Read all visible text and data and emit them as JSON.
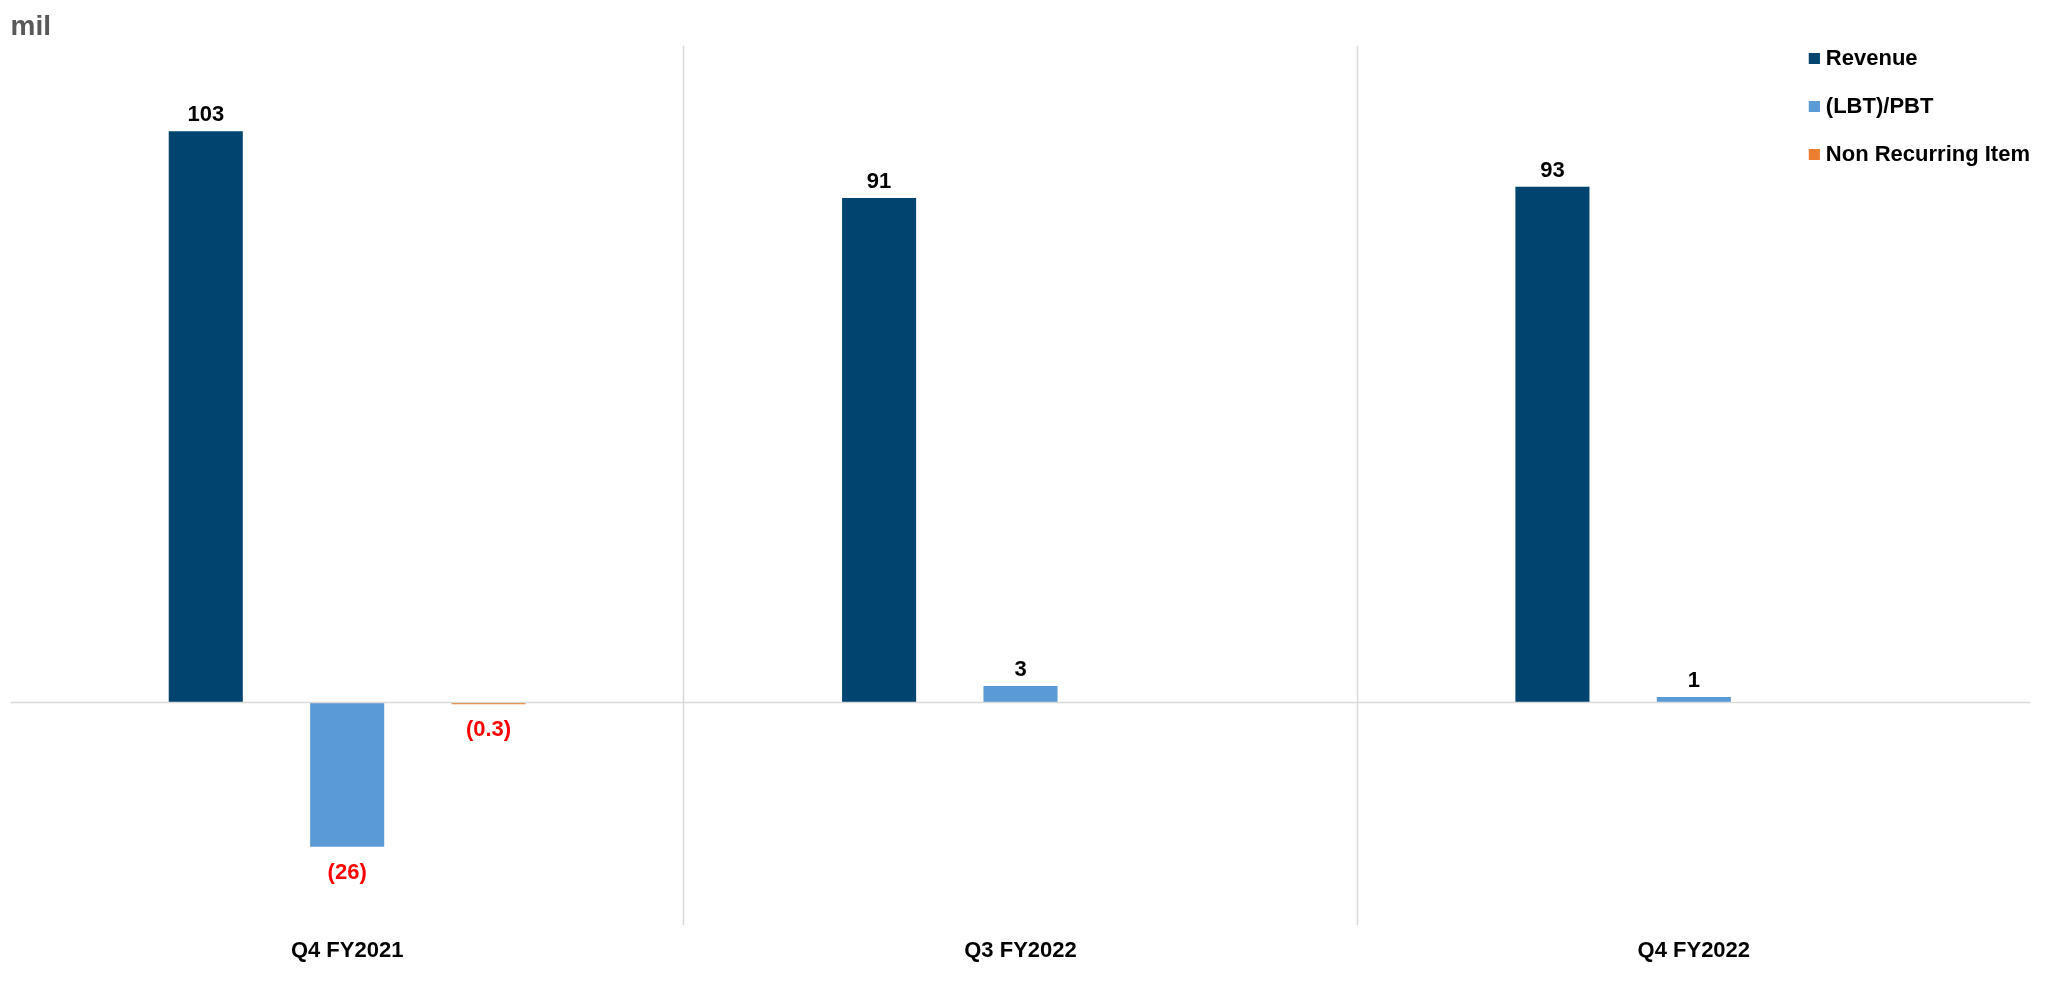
{
  "chart_data": {
    "type": "bar",
    "ylabel": "mil",
    "categories": [
      "Q4 FY2021",
      "Q3 FY2022",
      "Q4 FY2022"
    ],
    "series": [
      {
        "name": "Revenue",
        "color": "#00446f",
        "values": [
          103,
          91,
          93
        ],
        "value_labels": [
          "103",
          "91",
          "93"
        ]
      },
      {
        "name": "(LBT)/PBT",
        "color": "#5b9bd5",
        "values": [
          -26,
          3,
          1
        ],
        "value_labels": [
          "(26)",
          "3",
          "1"
        ]
      },
      {
        "name": "Non Recurring Item",
        "color": "#ed7d31",
        "values": [
          -0.3,
          null,
          null
        ],
        "value_labels": [
          "(0.3)",
          null,
          null
        ]
      }
    ],
    "legend": "top right",
    "grid": "x"
  }
}
